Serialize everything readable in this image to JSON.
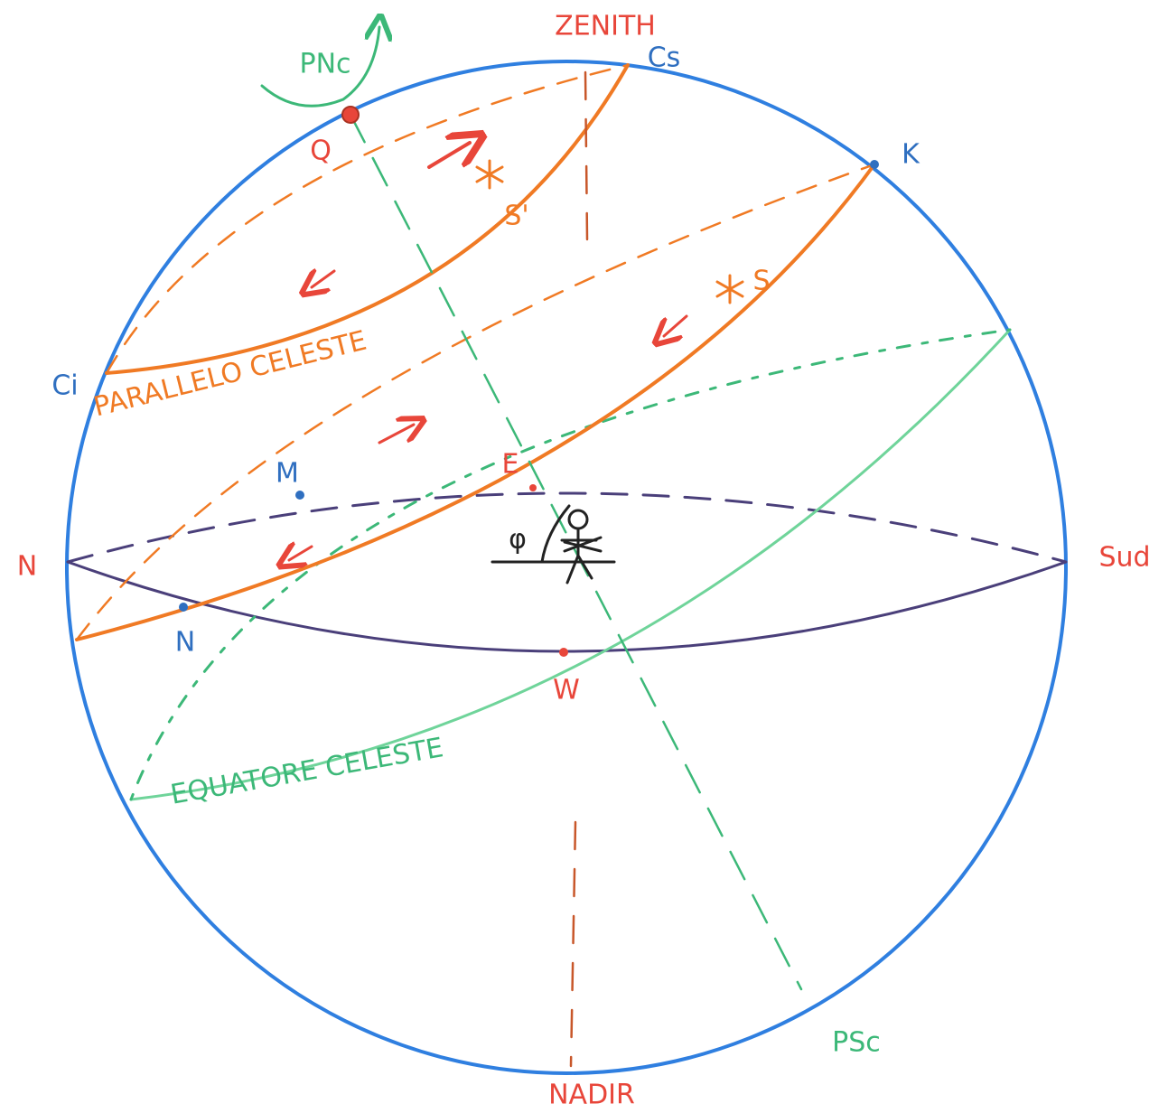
{
  "nodes": [
    {
      "label": "ZENITH"
    },
    {
      "label": "Cs"
    },
    {
      "label": "PNc"
    },
    {
      "label": "Q"
    },
    {
      "label": "K"
    },
    {
      "label": "S'"
    },
    {
      "label": "S"
    },
    {
      "label": "Ci"
    },
    {
      "label": "PARALLELO CELESTE"
    },
    {
      "label": "M"
    },
    {
      "label": "E"
    },
    {
      "label": "N"
    },
    {
      "label": "Sud"
    },
    {
      "label": "N"
    },
    {
      "label": "W"
    },
    {
      "label": "EQUATORE CELESTE"
    },
    {
      "label": "NADIR"
    },
    {
      "label": "PSc"
    },
    {
      "label": "φ"
    }
  ]
}
